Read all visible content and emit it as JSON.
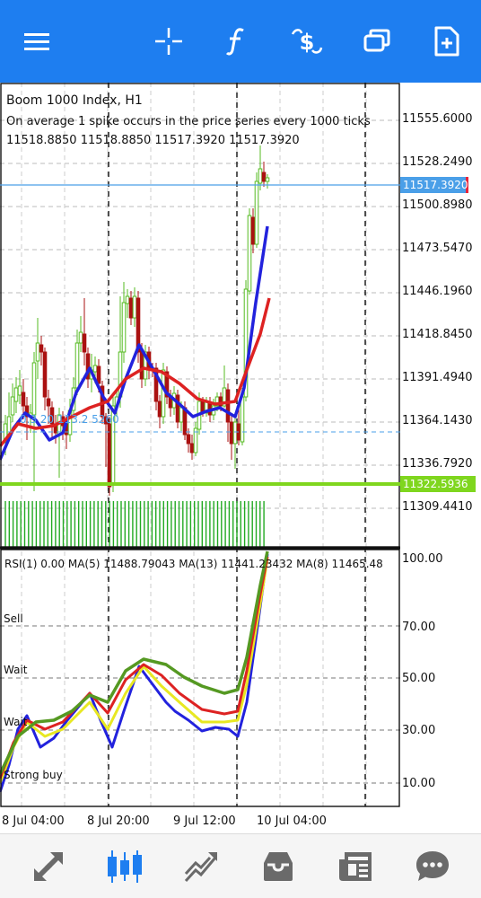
{
  "toolbar": {
    "icons": [
      "menu-icon",
      "crosshair-icon",
      "function-icon",
      "currency-icon",
      "windows-icon",
      "new-document-icon"
    ],
    "accent_color": "#1e7ef0"
  },
  "chart": {
    "symbol_title": "Boom 1000 Index, H1",
    "description": "On average 1 spike occurs in the price series every 1000 ticks",
    "ohlc": "11518.8850 11518.8850 11517.3920 11517.3920",
    "ma_label": "0.3 20 113.2 5260",
    "current_price": "11517.3920",
    "line_price": "11322.5936",
    "price_labels": [
      "11555.6000",
      "11528.2490",
      "11500.8980",
      "11473.5470",
      "11446.1960",
      "11418.8450",
      "11391.4940",
      "11364.1430",
      "11336.7920",
      "11309.4410"
    ],
    "colors": {
      "bull": "#55bb22",
      "bear": "#aa1111",
      "ma_blue": "#2222dd",
      "ma_red": "#dd2222",
      "current_line": "#4a9fe8",
      "support_line": "#7fd61e"
    }
  },
  "rsi": {
    "header": "RSI(1) 0.00 MA(5) 11488.79043 MA(13) 11441.23432 MA(8) 11465.48",
    "levels": [
      "100.00",
      "70.00",
      "50.00",
      "30.00",
      "10.00"
    ],
    "zone_labels": [
      "Sell",
      "Wait",
      "Wait",
      "Strong buy"
    ],
    "colors": {
      "blue": "#2222dd",
      "yellow": "#e8e822",
      "red": "#dd2222",
      "green": "#559922"
    }
  },
  "time_axis": [
    "8 Jul 04:00",
    "8 Jul 20:00",
    "9 Jul 12:00",
    "10 Jul 04:00"
  ],
  "bottom_nav": {
    "icons": [
      "quotes-icon",
      "chart-icon",
      "trade-icon",
      "history-icon",
      "news-icon",
      "chat-icon"
    ],
    "active_index": 1,
    "active_color": "#1e7ef0",
    "inactive_color": "#6a6a6a"
  }
}
